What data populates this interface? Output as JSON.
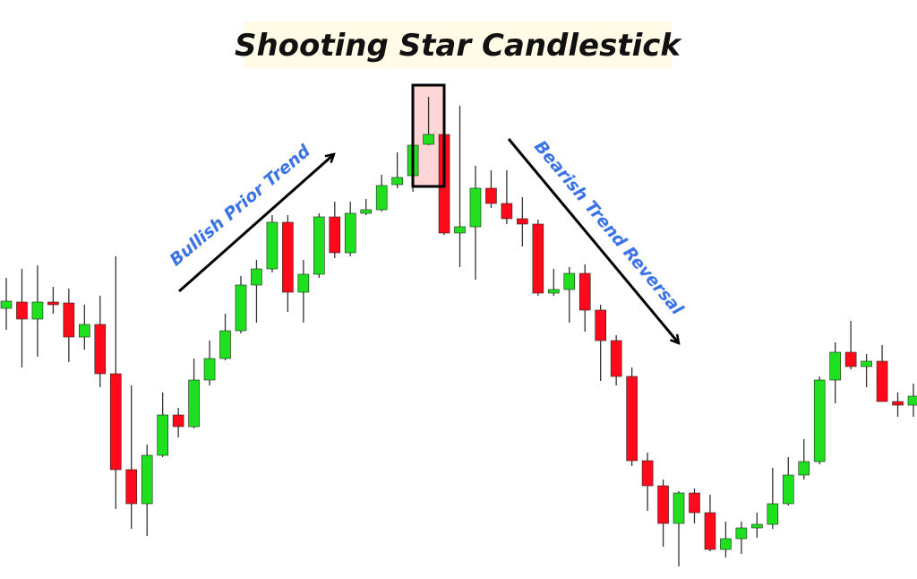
{
  "chart_data": {
    "type": "candlestick",
    "title": "Shooting Star Candlestick",
    "annotations": [
      "Bullish Prior Trend",
      "Bearish Trend Reversal"
    ],
    "up_color": "#1fe01f",
    "down_color": "#ff0a1a",
    "open": [
      356,
      363,
      344,
      363,
      362,
      324,
      338,
      283,
      176,
      138,
      192,
      237,
      224,
      276,
      300,
      331,
      382,
      400,
      452,
      374,
      394,
      458,
      418,
      462,
      466,
      494,
      504,
      539,
      550,
      440,
      447,
      490,
      473,
      456,
      450,
      373,
      377,
      395,
      354,
      320,
      280,
      186,
      158,
      116,
      150,
      128,
      87,
      99,
      111,
      115,
      138,
      170,
      185,
      276,
      307,
      291,
      297,
      252,
      248
    ],
    "high": [
      390,
      400,
      404,
      380,
      378,
      360,
      370,
      414,
      270,
      204,
      262,
      245,
      300,
      320,
      350,
      392,
      410,
      460,
      460,
      410,
      462,
      475,
      475,
      478,
      505,
      530,
      542,
      592,
      582,
      582,
      515,
      510,
      510,
      480,
      455,
      400,
      402,
      405,
      360,
      326,
      290,
      195,
      165,
      152,
      155,
      148,
      118,
      118,
      128,
      178,
      190,
      210,
      280,
      318,
      342,
      305,
      315,
      262,
      272
    ],
    "low": [
      332,
      290,
      302,
      350,
      296,
      310,
      268,
      132,
      110,
      102,
      190,
      212,
      222,
      270,
      298,
      328,
      340,
      396,
      352,
      340,
      390,
      412,
      414,
      460,
      464,
      490,
      486,
      538,
      438,
      402,
      388,
      468,
      450,
      425,
      370,
      370,
      340,
      330,
      275,
      270,
      180,
      130,
      90,
      68,
      116,
      85,
      78,
      82,
      100,
      110,
      136,
      165,
      182,
      250,
      288,
      268,
      252,
      235,
      235
    ],
    "close": [
      364,
      344,
      363,
      360,
      324,
      338,
      283,
      176,
      138,
      192,
      237,
      224,
      276,
      300,
      331,
      382,
      400,
      452,
      374,
      394,
      458,
      418,
      462,
      466,
      493,
      502,
      538,
      550,
      440,
      447,
      490,
      473,
      456,
      450,
      373,
      377,
      395,
      354,
      320,
      280,
      186,
      158,
      116,
      150,
      128,
      87,
      99,
      111,
      115,
      138,
      170,
      185,
      276,
      307,
      291,
      297,
      252,
      248,
      258
    ]
  }
}
